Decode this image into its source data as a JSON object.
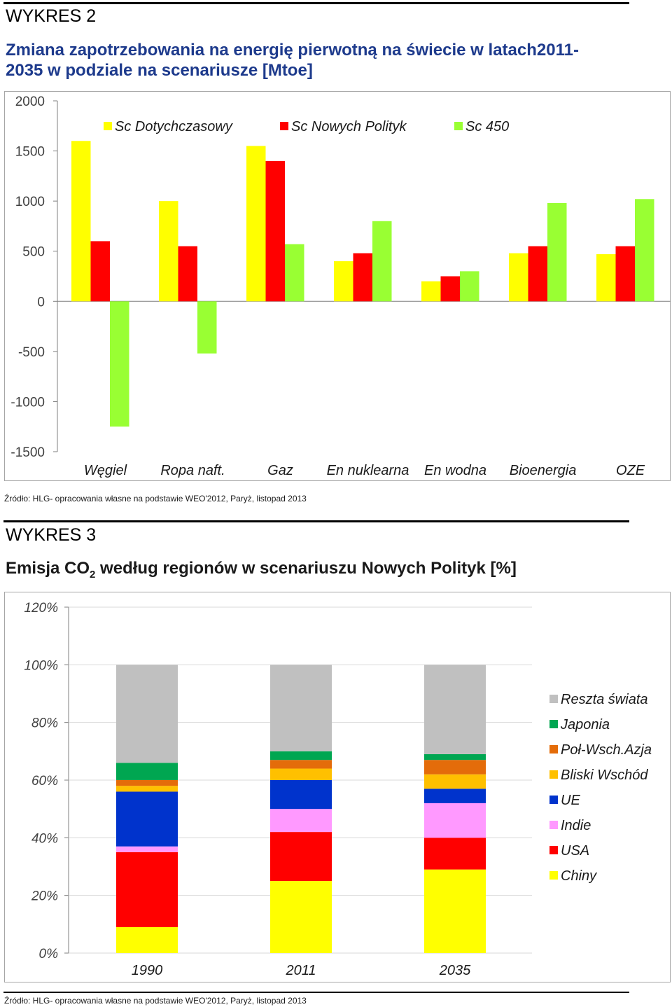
{
  "chart1": {
    "header": "WYKRES 2",
    "title_line1": "Zmiana zapotrzebowania na energię pierwotną na świecie w latach2011-",
    "title_line2": "2035 w podziale na scenariusze [Mtoe]",
    "source": "Źródło: HLG- opracowania własne na podstawie WEO'2012, Paryż, listopad 2013"
  },
  "chart2": {
    "header": "WYKRES 3",
    "title_pre": "Emisja CO",
    "title_sub": "2",
    "title_post": " według regionów w scenariuszu Nowych Polityk  [%]",
    "source": "Źródło: HLG- opracowania własne na podstawie WEO'2012, Paryż, listopad 2013"
  },
  "chart_data": [
    {
      "type": "bar",
      "categories": [
        "Węgiel",
        "Ropa naft.",
        "Gaz",
        "En nuklearna",
        "En wodna",
        "Bioenergia",
        "OZE"
      ],
      "series": [
        {
          "name": "Sc Dotychczasowy",
          "color": "#ffff00",
          "values": [
            1600,
            1000,
            1550,
            400,
            200,
            480,
            470
          ]
        },
        {
          "name": "Sc Nowych Polityk",
          "color": "#ff0000",
          "values": [
            600,
            550,
            1400,
            480,
            250,
            550,
            550
          ]
        },
        {
          "name": "Sc 450",
          "color": "#99ff33",
          "values": [
            -1250,
            -520,
            570,
            800,
            300,
            980,
            1020
          ]
        }
      ],
      "ylim": [
        -1500,
        2000
      ],
      "yticks": [
        "2000",
        "1500",
        "1000",
        "500",
        "0",
        "-500",
        "-1000",
        "-1500"
      ],
      "legend_position": "top",
      "grid": false
    },
    {
      "type": "bar",
      "stacked": true,
      "categories": [
        "1990",
        "2011",
        "2035"
      ],
      "series": [
        {
          "name": "Chiny",
          "color": "#ffff00",
          "values": [
            9,
            25,
            29
          ]
        },
        {
          "name": "USA",
          "color": "#ff0000",
          "values": [
            26,
            17,
            11
          ]
        },
        {
          "name": "Indie",
          "color": "#ff99ff",
          "values": [
            2,
            8,
            12
          ]
        },
        {
          "name": "UE",
          "color": "#0033cc",
          "values": [
            19,
            10,
            5
          ]
        },
        {
          "name": "Bliski Wschód",
          "color": "#ffc000",
          "values": [
            2,
            4,
            5
          ]
        },
        {
          "name": "Poł-Wsch.Azja",
          "color": "#e46c0a",
          "values": [
            2,
            3,
            5
          ]
        },
        {
          "name": "Japonia",
          "color": "#00a651",
          "values": [
            6,
            3,
            2
          ]
        },
        {
          "name": "Reszta świata",
          "color": "#c0c0c0",
          "values": [
            34,
            30,
            31
          ]
        }
      ],
      "ylim": [
        0,
        120
      ],
      "yticks": [
        "0%",
        "20%",
        "40%",
        "60%",
        "80%",
        "100%",
        "120%"
      ],
      "legend_position": "right",
      "grid": false
    }
  ]
}
